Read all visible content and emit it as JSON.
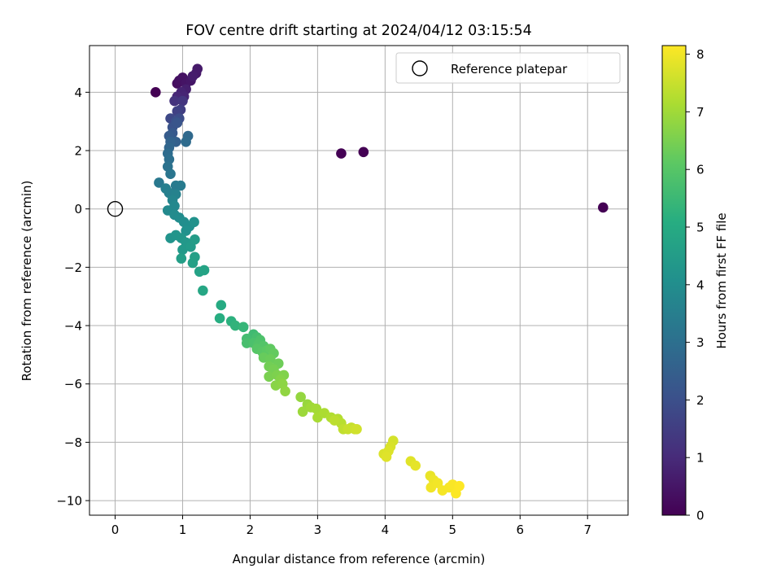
{
  "chart_data": {
    "type": "scatter",
    "title": "FOV centre drift starting at 2024/04/12 03:15:54",
    "xlabel": "Angular distance from reference (arcmin)",
    "ylabel": "Rotation from reference (arcmin)",
    "xlim": [
      -0.38,
      7.6
    ],
    "ylim": [
      -10.5,
      5.6
    ],
    "xticks": [
      0,
      1,
      2,
      3,
      4,
      5,
      6,
      7
    ],
    "yticks": [
      -10,
      -8,
      -6,
      -4,
      -2,
      0,
      2,
      4
    ],
    "grid": true,
    "legend": {
      "position": "top-right",
      "entries": [
        "Reference platepar"
      ]
    },
    "reference": {
      "x": 0,
      "y": 0
    },
    "colorbar": {
      "label": "Hours from first FF file",
      "min": 0,
      "max": 8.15,
      "ticks": [
        0,
        1,
        2,
        3,
        4,
        5,
        6,
        7,
        8
      ],
      "colormap": "viridis"
    },
    "series": [
      {
        "colorscale": "hours",
        "points": [
          {
            "x": 0.6,
            "y": 4.0,
            "c": 0.0
          },
          {
            "x": 3.35,
            "y": 1.9,
            "c": 0.0
          },
          {
            "x": 3.68,
            "y": 1.95,
            "c": 0.0
          },
          {
            "x": 7.23,
            "y": 0.05,
            "c": 0.0
          },
          {
            "x": 0.92,
            "y": 4.3,
            "c": 0.3
          },
          {
            "x": 0.95,
            "y": 4.4,
            "c": 0.35
          },
          {
            "x": 1.0,
            "y": 4.5,
            "c": 0.4
          },
          {
            "x": 1.05,
            "y": 4.3,
            "c": 0.45
          },
          {
            "x": 1.12,
            "y": 4.4,
            "c": 0.5
          },
          {
            "x": 1.2,
            "y": 4.65,
            "c": 0.55
          },
          {
            "x": 1.22,
            "y": 4.8,
            "c": 0.6
          },
          {
            "x": 1.15,
            "y": 4.55,
            "c": 0.65
          },
          {
            "x": 1.05,
            "y": 4.1,
            "c": 0.7
          },
          {
            "x": 0.98,
            "y": 4.0,
            "c": 0.8
          },
          {
            "x": 1.02,
            "y": 3.85,
            "c": 0.85
          },
          {
            "x": 0.92,
            "y": 3.85,
            "c": 0.9
          },
          {
            "x": 0.88,
            "y": 3.7,
            "c": 1.2
          },
          {
            "x": 1.0,
            "y": 3.7,
            "c": 1.3
          },
          {
            "x": 0.97,
            "y": 3.4,
            "c": 1.5
          },
          {
            "x": 0.92,
            "y": 3.35,
            "c": 1.6
          },
          {
            "x": 0.82,
            "y": 3.1,
            "c": 1.8
          },
          {
            "x": 0.95,
            "y": 3.1,
            "c": 1.9
          },
          {
            "x": 0.9,
            "y": 3.0,
            "c": 2.0
          },
          {
            "x": 0.85,
            "y": 2.8,
            "c": 2.1
          },
          {
            "x": 0.92,
            "y": 2.95,
            "c": 2.15
          },
          {
            "x": 0.85,
            "y": 2.6,
            "c": 2.3
          },
          {
            "x": 0.8,
            "y": 2.5,
            "c": 2.4
          },
          {
            "x": 0.9,
            "y": 2.3,
            "c": 2.5
          },
          {
            "x": 0.82,
            "y": 2.3,
            "c": 2.6
          },
          {
            "x": 0.8,
            "y": 2.1,
            "c": 2.7
          },
          {
            "x": 1.08,
            "y": 2.5,
            "c": 2.8
          },
          {
            "x": 1.05,
            "y": 2.3,
            "c": 2.85
          },
          {
            "x": 0.78,
            "y": 1.9,
            "c": 2.9
          },
          {
            "x": 0.8,
            "y": 1.7,
            "c": 3.0
          },
          {
            "x": 0.78,
            "y": 1.45,
            "c": 3.1
          },
          {
            "x": 0.82,
            "y": 1.2,
            "c": 3.2
          },
          {
            "x": 0.65,
            "y": 0.9,
            "c": 3.3
          },
          {
            "x": 0.9,
            "y": 0.8,
            "c": 3.35
          },
          {
            "x": 0.97,
            "y": 0.8,
            "c": 3.4
          },
          {
            "x": 0.75,
            "y": 0.7,
            "c": 3.5
          },
          {
            "x": 0.8,
            "y": 0.55,
            "c": 3.55
          },
          {
            "x": 0.9,
            "y": 0.5,
            "c": 3.6
          },
          {
            "x": 0.85,
            "y": 0.3,
            "c": 3.7
          },
          {
            "x": 0.88,
            "y": 0.1,
            "c": 3.8
          },
          {
            "x": 0.78,
            "y": -0.05,
            "c": 3.85
          },
          {
            "x": 0.88,
            "y": -0.2,
            "c": 3.9
          },
          {
            "x": 0.95,
            "y": -0.3,
            "c": 3.95
          },
          {
            "x": 1.02,
            "y": -0.45,
            "c": 4.0
          },
          {
            "x": 1.1,
            "y": -0.6,
            "c": 4.05
          },
          {
            "x": 1.05,
            "y": -0.75,
            "c": 4.1
          },
          {
            "x": 1.17,
            "y": -0.45,
            "c": 4.15
          },
          {
            "x": 0.82,
            "y": -1.0,
            "c": 4.2
          },
          {
            "x": 0.9,
            "y": -0.9,
            "c": 4.25
          },
          {
            "x": 0.98,
            "y": -1.0,
            "c": 4.3
          },
          {
            "x": 1.05,
            "y": -1.15,
            "c": 4.35
          },
          {
            "x": 1.0,
            "y": -1.4,
            "c": 4.4
          },
          {
            "x": 1.12,
            "y": -1.3,
            "c": 4.45
          },
          {
            "x": 1.18,
            "y": -1.05,
            "c": 4.5
          },
          {
            "x": 0.98,
            "y": -1.7,
            "c": 4.55
          },
          {
            "x": 1.18,
            "y": -1.65,
            "c": 4.6
          },
          {
            "x": 1.15,
            "y": -1.85,
            "c": 4.65
          },
          {
            "x": 1.25,
            "y": -2.15,
            "c": 4.7
          },
          {
            "x": 1.32,
            "y": -2.1,
            "c": 4.75
          },
          {
            "x": 1.3,
            "y": -2.8,
            "c": 4.85
          },
          {
            "x": 1.57,
            "y": -3.3,
            "c": 5.0
          },
          {
            "x": 1.55,
            "y": -3.75,
            "c": 5.1
          },
          {
            "x": 1.72,
            "y": -3.85,
            "c": 5.2
          },
          {
            "x": 1.78,
            "y": -4.0,
            "c": 5.3
          },
          {
            "x": 1.9,
            "y": -4.05,
            "c": 5.4
          },
          {
            "x": 2.05,
            "y": -4.3,
            "c": 5.6
          },
          {
            "x": 1.95,
            "y": -4.45,
            "c": 5.65
          },
          {
            "x": 2.1,
            "y": -4.4,
            "c": 5.7
          },
          {
            "x": 1.95,
            "y": -4.6,
            "c": 5.75
          },
          {
            "x": 2.05,
            "y": -4.6,
            "c": 5.8
          },
          {
            "x": 2.15,
            "y": -4.5,
            "c": 5.85
          },
          {
            "x": 2.12,
            "y": -4.65,
            "c": 5.9
          },
          {
            "x": 2.2,
            "y": -4.7,
            "c": 5.95
          },
          {
            "x": 2.1,
            "y": -4.8,
            "c": 6.0
          },
          {
            "x": 2.18,
            "y": -4.9,
            "c": 6.05
          },
          {
            "x": 2.25,
            "y": -4.85,
            "c": 6.1
          },
          {
            "x": 2.3,
            "y": -4.8,
            "c": 6.15
          },
          {
            "x": 2.35,
            "y": -4.95,
            "c": 6.2
          },
          {
            "x": 2.2,
            "y": -5.1,
            "c": 6.25
          },
          {
            "x": 2.3,
            "y": -5.15,
            "c": 6.3
          },
          {
            "x": 2.42,
            "y": -5.3,
            "c": 6.35
          },
          {
            "x": 2.28,
            "y": -5.4,
            "c": 6.4
          },
          {
            "x": 2.35,
            "y": -5.5,
            "c": 6.45
          },
          {
            "x": 2.28,
            "y": -5.75,
            "c": 6.5
          },
          {
            "x": 2.4,
            "y": -5.7,
            "c": 6.55
          },
          {
            "x": 2.5,
            "y": -5.7,
            "c": 6.6
          },
          {
            "x": 2.45,
            "y": -5.85,
            "c": 6.65
          },
          {
            "x": 2.38,
            "y": -6.05,
            "c": 6.7
          },
          {
            "x": 2.48,
            "y": -6.0,
            "c": 6.75
          },
          {
            "x": 2.52,
            "y": -6.25,
            "c": 6.8
          },
          {
            "x": 2.75,
            "y": -6.45,
            "c": 6.85
          },
          {
            "x": 2.85,
            "y": -6.7,
            "c": 6.9
          },
          {
            "x": 2.78,
            "y": -6.95,
            "c": 6.95
          },
          {
            "x": 2.9,
            "y": -6.8,
            "c": 7.0
          },
          {
            "x": 2.98,
            "y": -6.85,
            "c": 7.05
          },
          {
            "x": 3.0,
            "y": -7.15,
            "c": 7.1
          },
          {
            "x": 3.1,
            "y": -7.0,
            "c": 7.15
          },
          {
            "x": 3.2,
            "y": -7.15,
            "c": 7.2
          },
          {
            "x": 3.3,
            "y": -7.2,
            "c": 7.25
          },
          {
            "x": 3.35,
            "y": -7.35,
            "c": 7.3
          },
          {
            "x": 3.25,
            "y": -7.25,
            "c": 7.35
          },
          {
            "x": 3.38,
            "y": -7.55,
            "c": 7.4
          },
          {
            "x": 3.5,
            "y": -7.5,
            "c": 7.45
          },
          {
            "x": 3.45,
            "y": -7.55,
            "c": 7.5
          },
          {
            "x": 3.55,
            "y": -7.55,
            "c": 7.55
          },
          {
            "x": 3.58,
            "y": -7.55,
            "c": 7.6
          },
          {
            "x": 4.12,
            "y": -7.95,
            "c": 7.65
          },
          {
            "x": 4.08,
            "y": -8.15,
            "c": 7.7
          },
          {
            "x": 3.98,
            "y": -8.4,
            "c": 7.72
          },
          {
            "x": 4.05,
            "y": -8.3,
            "c": 7.75
          },
          {
            "x": 4.02,
            "y": -8.5,
            "c": 7.78
          },
          {
            "x": 4.38,
            "y": -8.65,
            "c": 7.8
          },
          {
            "x": 4.45,
            "y": -8.8,
            "c": 7.85
          },
          {
            "x": 4.67,
            "y": -9.15,
            "c": 7.9
          },
          {
            "x": 4.72,
            "y": -9.3,
            "c": 7.95
          },
          {
            "x": 4.68,
            "y": -9.55,
            "c": 8.0
          },
          {
            "x": 4.78,
            "y": -9.4,
            "c": 8.02
          },
          {
            "x": 4.85,
            "y": -9.65,
            "c": 8.05
          },
          {
            "x": 4.95,
            "y": -9.55,
            "c": 8.07
          },
          {
            "x": 5.0,
            "y": -9.45,
            "c": 8.1
          },
          {
            "x": 5.05,
            "y": -9.75,
            "c": 8.12
          },
          {
            "x": 5.1,
            "y": -9.5,
            "c": 8.15
          }
        ]
      }
    ]
  }
}
